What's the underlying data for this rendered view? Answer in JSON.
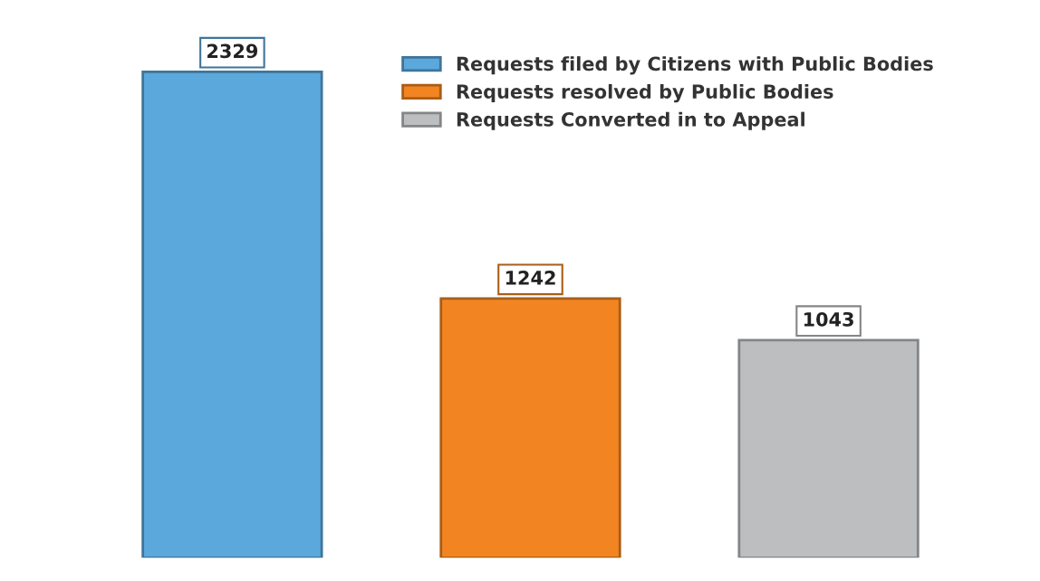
{
  "chart_data": {
    "type": "bar",
    "categories": [
      null,
      null,
      null
    ],
    "series": [
      {
        "name": "Requests filed by Citizens with Public Bodies",
        "color": "#5ba8dc",
        "values": [
          2329,
          null,
          null
        ]
      },
      {
        "name": "Requests resolved by Public Bodies",
        "color": "#f28522",
        "values": [
          null,
          1242,
          null
        ]
      },
      {
        "name": "Requests Converted in to Appeal",
        "color": "#bcbec0",
        "values": [
          null,
          null,
          1043
        ]
      }
    ],
    "stacked": true,
    "data_labels": true,
    "legend": "top right",
    "grid": false
  }
}
